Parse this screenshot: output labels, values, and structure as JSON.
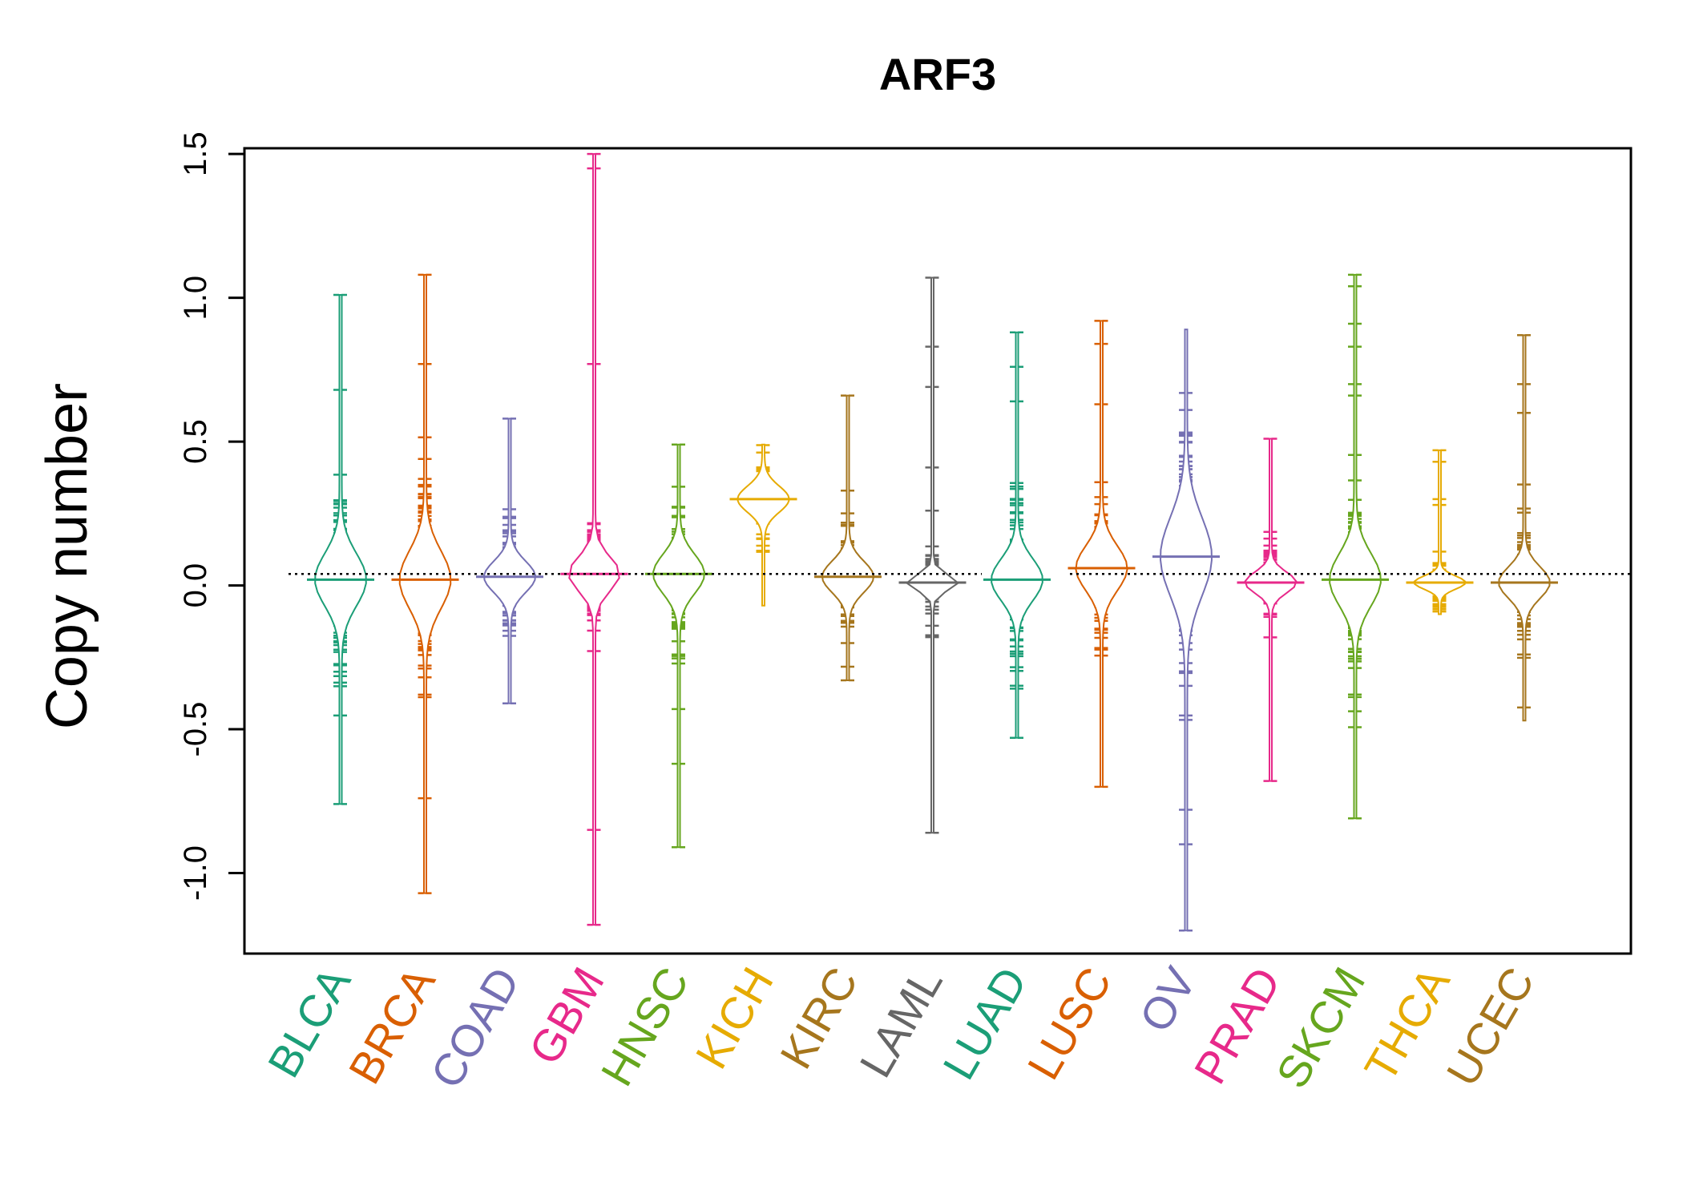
{
  "chart_data": {
    "type": "beanplot",
    "title": "ARF3",
    "xlabel": "",
    "ylabel": "Copy number",
    "ylim": [
      -1.28,
      1.52
    ],
    "yticks": [
      -1.0,
      -0.5,
      0.0,
      0.5,
      1.0,
      1.5
    ],
    "ytick_labels": [
      "-1.0",
      "-0.5",
      "0.0",
      "0.5",
      "1.0",
      "1.5"
    ],
    "reference_line": 0.04,
    "grid": false,
    "legend": "none",
    "categories": [
      "BLCA",
      "BRCA",
      "COAD",
      "GBM",
      "HNSC",
      "KICH",
      "KIRC",
      "LAML",
      "LUAD",
      "LUSC",
      "OV",
      "PRAD",
      "SKCM",
      "THCA",
      "UCEC"
    ],
    "colors": [
      "#1b9e77",
      "#d95f02",
      "#7570b3",
      "#e7298a",
      "#66a61e",
      "#e6ab02",
      "#a6761d",
      "#666666",
      "#1b9e77",
      "#d95f02",
      "#7570b3",
      "#e7298a",
      "#66a61e",
      "#e6ab02",
      "#a6761d"
    ],
    "series": [
      {
        "category": "BLCA",
        "min": -0.76,
        "max": 1.01,
        "outliers": [
          1.01,
          0.68,
          -0.76
        ],
        "density_peak": 0.02,
        "spread": 0.2
      },
      {
        "category": "BRCA",
        "min": -1.07,
        "max": 1.08,
        "outliers": [
          1.08,
          0.77,
          -0.74,
          -1.07
        ],
        "density_peak": 0.02,
        "spread": 0.22
      },
      {
        "category": "COAD",
        "min": -0.41,
        "max": 0.58,
        "outliers": [
          0.58,
          -0.41
        ],
        "density_peak": 0.03,
        "spread": 0.12
      },
      {
        "category": "GBM",
        "min": -1.18,
        "max": 1.5,
        "outliers": [
          1.5,
          1.45,
          0.77,
          -0.85,
          -1.18
        ],
        "density_peak": 0.04,
        "spread": 0.13
      },
      {
        "category": "HNSC",
        "min": -0.91,
        "max": 0.49,
        "outliers": [
          0.49,
          -0.62,
          -0.91
        ],
        "density_peak": 0.04,
        "spread": 0.15
      },
      {
        "category": "KICH",
        "min": -0.07,
        "max": 0.49,
        "outliers": [],
        "density_peak": 0.3,
        "spread": 0.1
      },
      {
        "category": "KIRC",
        "min": -0.33,
        "max": 0.66,
        "outliers": [
          0.66,
          -0.33
        ],
        "density_peak": 0.03,
        "spread": 0.12
      },
      {
        "category": "LAML",
        "min": -0.86,
        "max": 1.07,
        "outliers": [
          1.07,
          0.83,
          0.69,
          0.41,
          0.26,
          -0.14,
          -0.18,
          -0.86
        ],
        "density_peak": 0.01,
        "spread": 0.06
      },
      {
        "category": "LUAD",
        "min": -0.53,
        "max": 0.88,
        "outliers": [
          0.88,
          0.76,
          0.64,
          -0.53
        ],
        "density_peak": 0.02,
        "spread": 0.16
      },
      {
        "category": "LUSC",
        "min": -0.7,
        "max": 0.92,
        "outliers": [
          0.92,
          0.84,
          0.63,
          -0.7
        ],
        "density_peak": 0.06,
        "spread": 0.17
      },
      {
        "category": "OV",
        "min": -1.2,
        "max": 0.89,
        "outliers": [
          -0.78,
          -0.9,
          -1.2
        ],
        "density_peak": 0.1,
        "spread": 0.3
      },
      {
        "category": "PRAD",
        "min": -0.68,
        "max": 0.51,
        "outliers": [
          0.51,
          -0.68
        ],
        "density_peak": 0.01,
        "spread": 0.08
      },
      {
        "category": "SKCM",
        "min": -0.81,
        "max": 1.08,
        "outliers": [
          1.08,
          1.04,
          0.91,
          0.83,
          0.7,
          0.66,
          -0.81
        ],
        "density_peak": 0.02,
        "spread": 0.2
      },
      {
        "category": "THCA",
        "min": -0.1,
        "max": 0.47,
        "outliers": [
          0.47,
          0.43,
          0.3,
          0.28
        ],
        "density_peak": 0.01,
        "spread": 0.05
      },
      {
        "category": "UCEC",
        "min": -0.47,
        "max": 0.87,
        "outliers": [
          0.87,
          0.7,
          0.6
        ],
        "density_peak": 0.01,
        "spread": 0.12
      }
    ]
  }
}
